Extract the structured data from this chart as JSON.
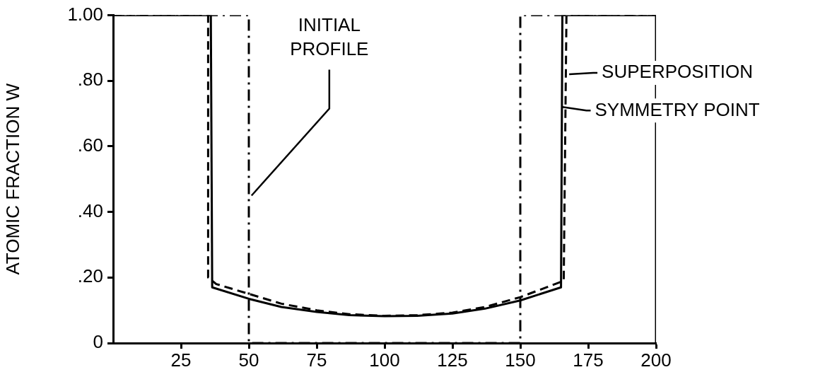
{
  "chart_data": {
    "type": "line",
    "ylabel": "ATOMIC FRACTION W",
    "xlim": [
      0,
      200
    ],
    "xticks": [
      25,
      50,
      75,
      100,
      125,
      150,
      175,
      200
    ],
    "ylim": [
      0,
      1
    ],
    "yticks": [
      {
        "value": 0,
        "label": "0"
      },
      {
        "value": 0.2,
        "label": ".20"
      },
      {
        "value": 0.4,
        "label": ".40"
      },
      {
        "value": 0.6,
        "label": ".60"
      },
      {
        "value": 0.8,
        "label": ".80"
      },
      {
        "value": 1,
        "label": "1.00"
      }
    ],
    "grid": false,
    "legend": false,
    "marker": "none",
    "series": [
      {
        "color": "#000000",
        "line_style": "dashdot",
        "x": [
          0,
          50,
          50,
          150,
          150,
          200
        ],
        "values": [
          1,
          1,
          0,
          0,
          1,
          1
        ]
      },
      {
        "color": "#000000",
        "line_style": "dashed",
        "x": [
          0,
          35,
          35,
          38,
          50,
          62,
          75,
          87,
          100,
          112,
          125,
          137,
          150,
          166,
          167,
          200
        ],
        "values": [
          1,
          1,
          0.2,
          0.18,
          0.15,
          0.12,
          0.1,
          0.088,
          0.083,
          0.085,
          0.093,
          0.11,
          0.14,
          0.19,
          1,
          1
        ]
      },
      {
        "color": "#000000",
        "line_style": "solid",
        "x": [
          0,
          36,
          36.5,
          50,
          62,
          75,
          87,
          100,
          112,
          125,
          137,
          150,
          165,
          165.5,
          200,
          200
        ],
        "values": [
          1,
          1,
          0.17,
          0.135,
          0.11,
          0.095,
          0.085,
          0.082,
          0.083,
          0.09,
          0.105,
          0.13,
          0.17,
          1,
          1,
          0
        ]
      }
    ],
    "annotations": [
      {
        "text": "INITIAL\nPROFILE",
        "x": 51,
        "y": 0.45
      },
      {
        "text": "SUPERPOSITION",
        "x": 168,
        "y": 0.82
      },
      {
        "text": "SYMMETRY POINT",
        "x": 165.5,
        "y": 0.72
      }
    ]
  }
}
